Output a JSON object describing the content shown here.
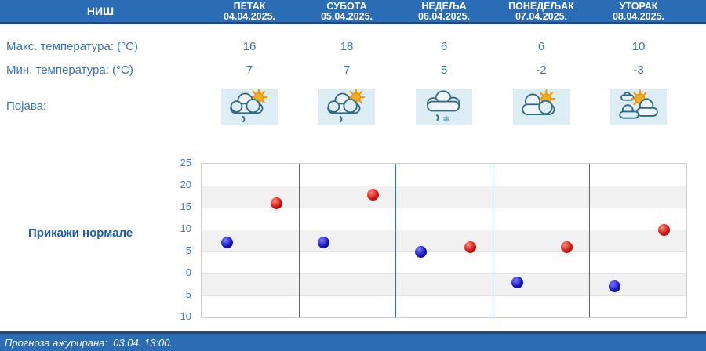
{
  "location": "НИШ",
  "row_labels": {
    "max_temp": "Макс. температура: (°C)",
    "min_temp": "Мин. температура: (°C)",
    "appearance": "Појава:"
  },
  "days": [
    {
      "name": "ПЕТАК",
      "date": "04.04.2025.",
      "max": "16",
      "min": "7",
      "icon": "partly-cloudy-rain"
    },
    {
      "name": "СУБОТА",
      "date": "05.04.2025.",
      "max": "18",
      "min": "7",
      "icon": "partly-cloudy-rain"
    },
    {
      "name": "НЕДЕЉА",
      "date": "06.04.2025.",
      "max": "6",
      "min": "5",
      "icon": "cloudy-rain-snow"
    },
    {
      "name": "ПОНЕДЕЉАК",
      "date": "07.04.2025.",
      "max": "6",
      "min": "-2",
      "icon": "partly-cloudy"
    },
    {
      "name": "УТОРАК",
      "date": "08.04.2025.",
      "max": "10",
      "min": "-3",
      "icon": "sun-between-clouds"
    }
  ],
  "normals_link_label": "Прикажи нормале",
  "footer": {
    "updated_text": "Прогноза ажурирана:  03.04. 13:00."
  },
  "chart_data": {
    "type": "scatter",
    "categories": [
      "ПЕТАК 04.04.2025.",
      "СУБОТА 05.04.2025.",
      "НЕДЕЉА 06.04.2025.",
      "ПОНЕДЕЉАК 07.04.2025.",
      "УТОРАК 08.04.2025."
    ],
    "series": [
      {
        "key": "max",
        "name": "Макс. температура (°C)",
        "color": "#d61414",
        "highlight": "#ff8d7a",
        "dark": "#8e0000",
        "values": [
          16,
          18,
          6,
          6,
          10
        ]
      },
      {
        "key": "min",
        "name": "Мин. температура (°C)",
        "color": "#1717c0",
        "highlight": "#7d7dff",
        "dark": "#00006e",
        "values": [
          7,
          7,
          5,
          -2,
          -3
        ]
      }
    ],
    "ylim": [
      -10,
      25
    ],
    "ytick_step": 5,
    "yticks": [
      25,
      20,
      15,
      10,
      5,
      0,
      -5,
      -10
    ],
    "grid": "horizontal-bands",
    "legend": "none"
  },
  "colors": {
    "header_bg": "#2a6cb5",
    "header_border": "#1c4a80",
    "text_blue": "#3a74b0",
    "link_blue": "#1a5dab",
    "icon_cell_bg": "#ddedf6",
    "band_gray": "#f1f1f1",
    "day_separator": "#3f6fa0",
    "max_dot": "#d61414",
    "min_dot": "#1717c0"
  }
}
